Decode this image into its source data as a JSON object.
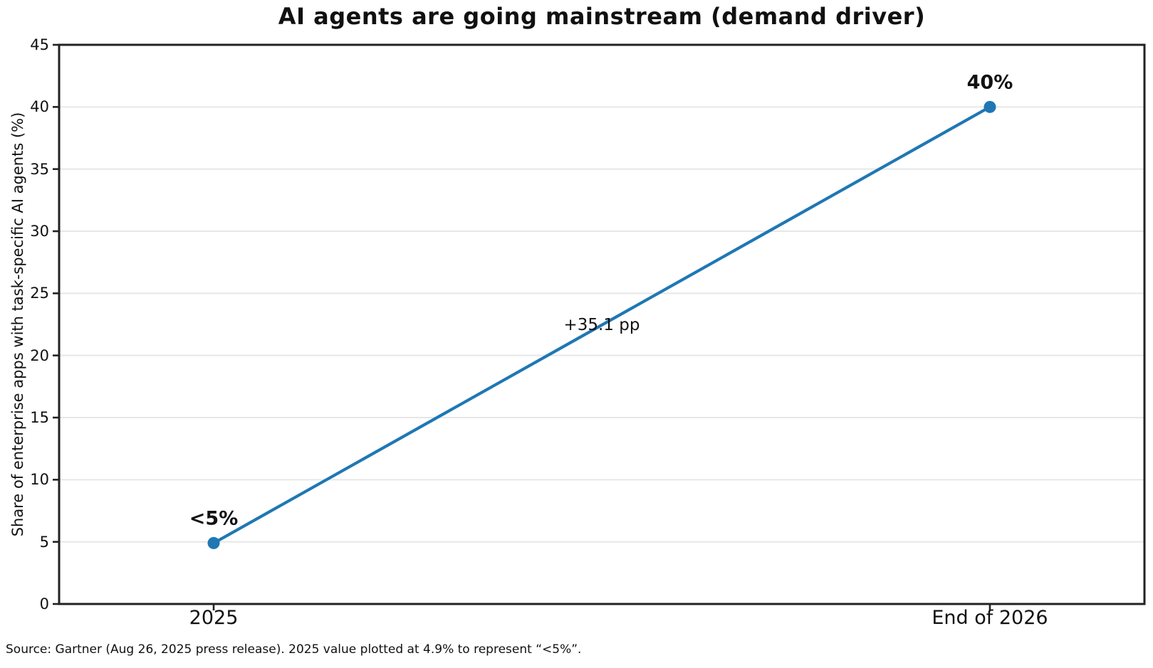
{
  "source_note": "Source: Gartner (Aug 26, 2025 press release). 2025 value plotted at 4.9% to represent “<5%”.",
  "chart_data": {
    "type": "line",
    "title": "AI agents are going mainstream (demand driver)",
    "xlabel": "",
    "ylabel": "Share of enterprise apps with task-specific AI agents (%)",
    "categories": [
      "2025",
      "End of 2026"
    ],
    "values": [
      4.9,
      40
    ],
    "point_labels": [
      "<5%",
      "40%"
    ],
    "midline_annotation": "+35.1 pp",
    "ylim": [
      0,
      45
    ],
    "ytick_step": 5,
    "yticks": [
      0,
      5,
      10,
      15,
      20,
      25,
      30,
      35,
      40,
      45
    ],
    "grid": "horizontal",
    "legend": "none",
    "line_color": "#1f77b4",
    "marker": "circle",
    "grid_color": "#e7e7e7",
    "spine_color": "#222222",
    "text_color": "#111111"
  }
}
